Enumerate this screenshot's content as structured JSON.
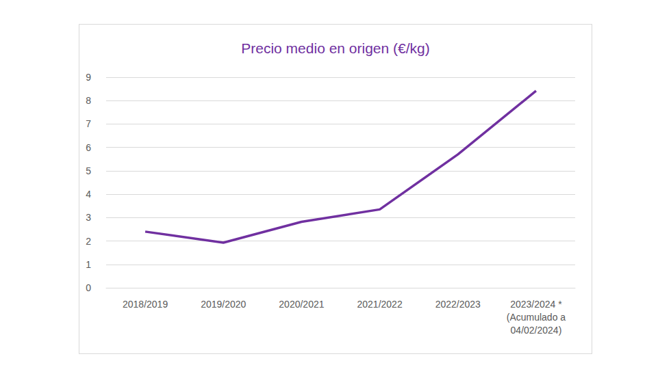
{
  "chart_data": {
    "type": "line",
    "title": "Precio medio en origen (€/kg)",
    "categories": [
      "2018/2019",
      "2019/2020",
      "2020/2021",
      "2021/2022",
      "2022/2023",
      "2023/2024 *\n(Acumulado a\n04/02/2024)"
    ],
    "values": [
      2.4,
      1.93,
      2.82,
      3.35,
      5.7,
      8.42
    ],
    "color": "#7030a0",
    "ylim": [
      0,
      9
    ],
    "yticks": [
      0,
      1,
      2,
      3,
      4,
      5,
      6,
      7,
      8,
      9
    ],
    "grid": true
  }
}
